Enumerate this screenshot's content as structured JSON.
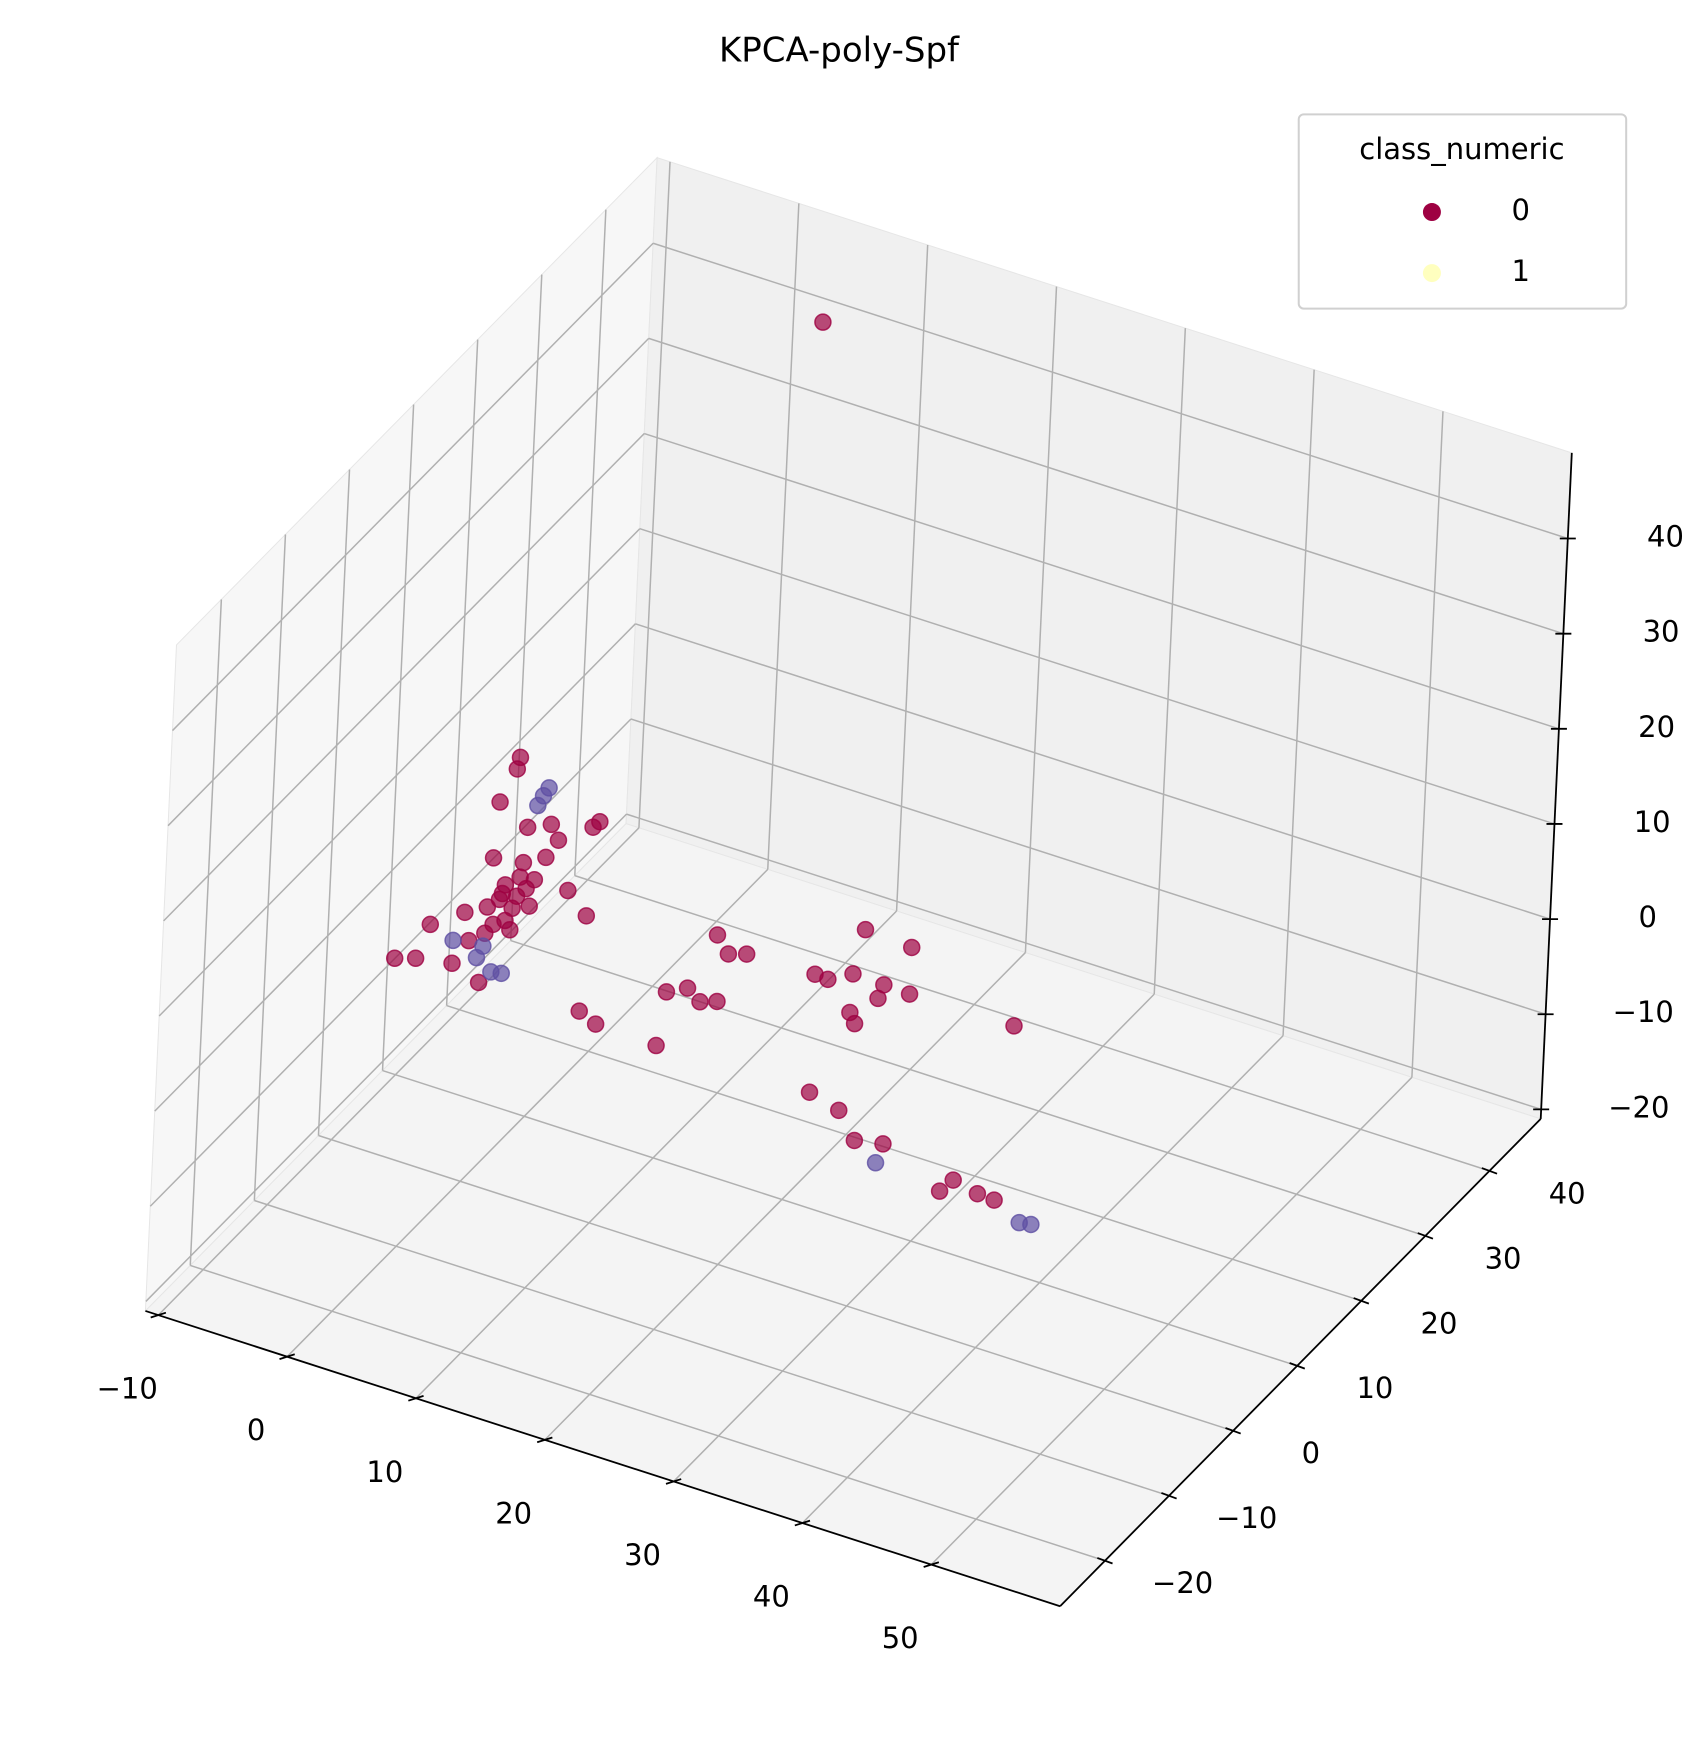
{
  "chart_data": {
    "type": "scatter3d",
    "title": "KPCA-poly-Spf",
    "legend_title": "class_numeric",
    "legend": "upper right",
    "xlim": [
      -11,
      60
    ],
    "ylim": [
      -27,
      48
    ],
    "zlim": [
      -21,
      49
    ],
    "xticks": [
      {
        "value": -10,
        "label": "−10"
      },
      0,
      10,
      20,
      30,
      40,
      50
    ],
    "yticks": [
      {
        "value": -20,
        "label": "−20"
      },
      {
        "value": -10,
        "label": "−10"
      },
      0,
      10,
      20,
      30,
      40
    ],
    "zticks": [
      {
        "value": -20,
        "label": "−20"
      },
      {
        "value": -10,
        "label": "−10"
      },
      0,
      10,
      20,
      30,
      40
    ],
    "grid": true,
    "series": [
      {
        "name": "0",
        "color": "#9e0142",
        "legend_color": "#9e0142",
        "x": [
          3.1,
          2.9,
          1.7,
          3.9,
          5.7,
          8.9,
          9.4,
          1.4,
          3.7,
          2.4,
          3.3,
          1.1,
          -0.6,
          7.2,
          8.7,
          -3.2,
          -5.8,
          -4.2,
          -1.4,
          0.7,
          2.9,
          4.6,
          1.6,
          -0.2,
          6.3,
          5.4,
          18.8,
          19.7,
          21.1,
          15.1,
          16.7,
          17.7,
          19.0,
          8.5,
          9.8,
          14.5,
          26.4,
          27.4,
          29.3,
          30.1,
          33.7,
          31.7,
          31.3,
          33.7,
          29.2,
          29.6,
          41.8,
          6.0,
          26.4,
          28.7,
          30.0,
          32.2,
          36.7,
          37.7,
          39.6,
          40.9,
          2.0,
          3.0,
          4.0,
          2.5,
          1.0,
          3.5,
          2.2,
          4.3
        ],
        "y": [
          0,
          0,
          0,
          0,
          0,
          0,
          0,
          0,
          0,
          0,
          0,
          0,
          0,
          0,
          0,
          0,
          0,
          0,
          0,
          0,
          0,
          0,
          0,
          0,
          0,
          0,
          0,
          0,
          0,
          0,
          0,
          0,
          0,
          0,
          0,
          0,
          0,
          0,
          0,
          0,
          0,
          0,
          0,
          0,
          0,
          0,
          0,
          40,
          0,
          0,
          0,
          0,
          0,
          0,
          0,
          0,
          0,
          0,
          0,
          0,
          0,
          0,
          0,
          0
        ],
        "z": [
          24.9,
          23.6,
          19.6,
          17.9,
          19.0,
          20.1,
          20.9,
          13.6,
          14.1,
          11.2,
          10.4,
          8.3,
          7.0,
          12.7,
          10.7,
          4.6,
          -0.1,
          0.6,
          1.3,
          0.2,
          6.7,
          12.7,
          6.7,
          4.2,
          17.6,
          15.4,
          13.1,
          11.5,
          12.1,
          5.5,
          6.6,
          5.6,
          6.2,
          0.6,
          -0.2,
          -0.4,
          12.3,
          12.2,
          13.6,
          18.6,
          18.3,
          13.5,
          11.9,
          13.4,
          9.5,
          8.5,
          13.6,
          44.6,
          -0.1,
          -1.0,
          -3.6,
          -3.0,
          -6.0,
          -4.4,
          -5.0,
          -5.1,
          9.5,
          9.0,
          11.5,
          7.5,
          5.5,
          12.5,
          10.2,
          9.8
        ]
      },
      {
        "name": "1",
        "color": "#5e4fa2",
        "legend_color": "#ffffbf",
        "x": [
          31.7,
          42.9,
          43.8,
          5.4,
          5.0,
          4.6,
          0.9,
          0.45,
          1.6,
          2.4,
          -1.4
        ],
        "y": [
          0,
          0,
          0,
          0,
          0,
          0,
          0,
          0,
          0,
          0,
          0
        ],
        "z": [
          -5.2,
          -6.6,
          -6.4,
          22.7,
          21.7,
          20.5,
          4.1,
          2.7,
          1.7,
          1.9,
          3.7
        ]
      }
    ]
  }
}
